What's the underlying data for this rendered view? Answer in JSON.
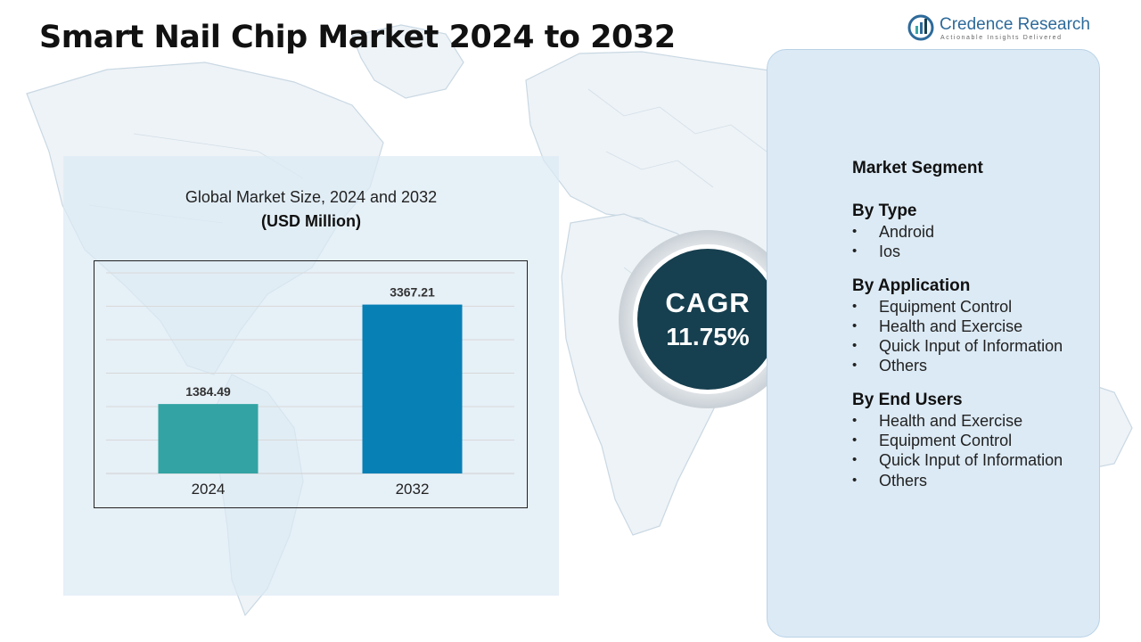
{
  "title": "Smart Nail Chip Market 2024 to 2032",
  "logo": {
    "name": "Credence Research",
    "tagline": "Actionable Insights Delivered",
    "icon": "credence-logo-icon"
  },
  "chart": {
    "title": "Global Market Size, 2024 and 2032",
    "unit": "(USD Million)"
  },
  "chart_data": {
    "type": "bar",
    "title": "Global Market Size, 2024 and 2032",
    "subtitle": "(USD Million)",
    "categories": [
      "2024",
      "2032"
    ],
    "values": [
      1384.49,
      3367.21
    ],
    "value_labels": [
      "1384.49",
      "3367.21"
    ],
    "bar_colors": [
      "#33a3a3",
      "#0780b5"
    ],
    "ylim": [
      0,
      4000
    ],
    "grid": true,
    "legend": "none"
  },
  "cagr": {
    "label": "CAGR",
    "value": "11.75%",
    "color": "#163f4f"
  },
  "segments": {
    "heading": "Market Segment",
    "groups": [
      {
        "title": "By Type",
        "items": [
          "Android",
          "Ios"
        ]
      },
      {
        "title": "By Application",
        "items": [
          "Equipment Control",
          "Health and Exercise",
          "Quick Input of Information",
          "Others"
        ]
      },
      {
        "title": "By End Users",
        "items": [
          "Health and Exercise",
          "Equipment Control",
          "Quick Input of Information",
          "Others"
        ]
      }
    ]
  }
}
